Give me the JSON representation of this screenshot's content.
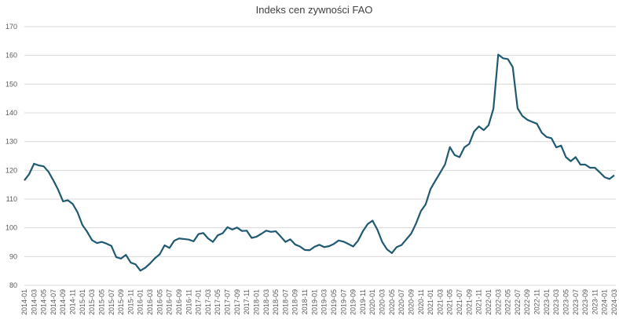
{
  "chart_data": {
    "type": "line",
    "title": "Indeks cen zywności FAO",
    "categories": [
      "2014-01",
      null,
      "2014-03",
      null,
      "2014-05",
      null,
      "2014-07",
      null,
      "2014-09",
      null,
      "2014-11",
      null,
      "2015-01",
      null,
      "2015-03",
      null,
      "2015-05",
      null,
      "2015-07",
      null,
      "2015-09",
      null,
      "2015-11",
      null,
      "2016-01",
      null,
      "2016-03",
      null,
      "2016-05",
      null,
      "2016-07",
      null,
      "2016-09",
      null,
      "2016-11",
      null,
      "2017-01",
      null,
      "2017-03",
      null,
      "2017-05",
      null,
      "2017-07",
      null,
      "2017-09",
      null,
      "2017-11",
      null,
      "2018-01",
      null,
      "2018-03",
      null,
      "2018-05",
      null,
      "2018-07",
      null,
      "2018-09",
      null,
      "2018-11",
      null,
      "2019-01",
      null,
      "2019-03",
      null,
      "2019-05",
      null,
      "2019-07",
      null,
      "2019-09",
      null,
      "2019-11",
      null,
      "2020-01",
      null,
      "2020-03",
      null,
      "2020-05",
      null,
      "2020-07",
      null,
      "2020-09",
      null,
      "2020-11",
      null,
      "2021-01",
      null,
      "2021-03",
      null,
      "2021-05",
      null,
      "2021-07",
      null,
      "2021-09",
      null,
      "2021-11",
      null,
      "2022-01",
      null,
      "2022-03",
      null,
      "2022-05",
      null,
      "2022-07",
      null,
      "2022-09",
      null,
      "2022-11",
      null,
      "2023-01",
      null,
      "2023-03",
      null,
      "2023-05",
      null,
      "2023-07",
      null,
      "2023-09",
      null,
      "2023-11",
      null,
      "2024-01",
      null,
      "2024-03"
    ],
    "series": [
      {
        "name": "Indeks cen zywności FAO",
        "color": "#1f5a72",
        "values": [
          116.5,
          118.7,
          122.3,
          121.7,
          121.4,
          119.5,
          116.5,
          113.2,
          109.2,
          109.6,
          108.3,
          105.4,
          101.0,
          98.6,
          95.7,
          94.7,
          95.1,
          94.5,
          93.7,
          89.8,
          89.3,
          90.6,
          87.9,
          87.3,
          85.1,
          86.1,
          87.6,
          89.4,
          90.8,
          93.9,
          93.0,
          95.5,
          96.3,
          96.1,
          95.9,
          95.3,
          97.8,
          98.2,
          96.3,
          95.1,
          97.4,
          98.1,
          100.2,
          99.4,
          100.1,
          98.9,
          99.0,
          96.5,
          96.9,
          97.9,
          99.0,
          98.6,
          98.8,
          97.0,
          95.1,
          96.0,
          94.2,
          93.5,
          92.3,
          92.2,
          93.4,
          94.1,
          93.3,
          93.6,
          94.4,
          95.6,
          95.2,
          94.4,
          93.5,
          95.5,
          98.8,
          101.3,
          102.5,
          99.4,
          95.1,
          92.5,
          91.2,
          93.3,
          94.0,
          96.0,
          98.0,
          101.5,
          105.8,
          108.2,
          113.5,
          116.4,
          119.2,
          122.1,
          128.1,
          125.3,
          124.6,
          128.0,
          129.2,
          133.5,
          135.3,
          134.0,
          135.7,
          141.4,
          160.3,
          159.0,
          158.7,
          155.9,
          141.6,
          138.9,
          137.6,
          136.9,
          136.2,
          133.1,
          131.6,
          131.2,
          128.0,
          128.6,
          124.6,
          123.2,
          124.6,
          122.0,
          122.0,
          120.9,
          120.9,
          119.3,
          117.6,
          117.0,
          118.3
        ]
      }
    ],
    "ylim": [
      80,
      170
    ],
    "yticks": [
      80,
      90,
      100,
      110,
      120,
      130,
      140,
      150,
      160,
      170
    ],
    "grid": true
  }
}
